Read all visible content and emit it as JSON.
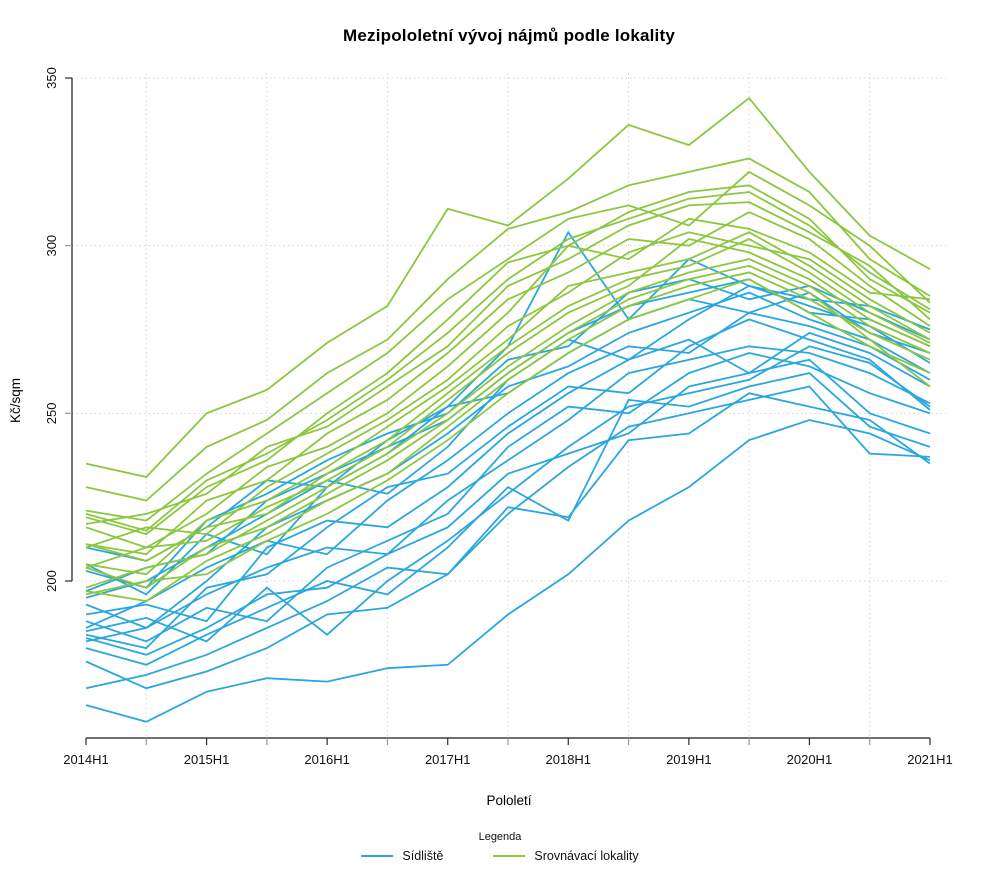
{
  "chart_data": {
    "type": "line",
    "title": "Mezipololetní vývoj nájmů podle lokality",
    "xlabel": "Pololetí",
    "ylabel": "Kč/sqm",
    "x_categories": [
      "2014H1",
      "2014H2",
      "2015H1",
      "2015H2",
      "2016H1",
      "2016H2",
      "2017H1",
      "2017H2",
      "2018H1",
      "2018H2",
      "2019H1",
      "2019H2",
      "2020H1",
      "2020H2",
      "2021H1"
    ],
    "x_labeled_every": 2,
    "y_ticks": [
      200,
      250,
      300,
      350
    ],
    "ylim": [
      152,
      351
    ],
    "grid": "dotted",
    "colors": {
      "sidliste": "#29a7de",
      "srovnavaci": "#8dc63f",
      "gridline": "#d4d4d4",
      "axis": "#1a1a1a",
      "minor_tick": "#9a9a9a"
    },
    "legend": {
      "title": "Legenda",
      "position": "bottom",
      "items": [
        {
          "label": "Sídliště",
          "color": "#29a7de"
        },
        {
          "label": "Srovnávací lokality",
          "color": "#8dc63f"
        }
      ]
    },
    "series": [
      {
        "group": "Sídliště",
        "values": [
          163,
          158,
          167,
          171,
          170,
          174,
          175,
          190,
          202,
          218,
          228,
          242,
          248,
          244,
          236
        ]
      },
      {
        "group": "Sídliště",
        "values": [
          176,
          168,
          173,
          180,
          190,
          192,
          202,
          222,
          219,
          242,
          244,
          256,
          252,
          248,
          235
        ]
      },
      {
        "group": "Sídliště",
        "values": [
          183,
          178,
          186,
          196,
          198,
          208,
          216,
          232,
          238,
          244,
          258,
          262,
          266,
          250,
          244
        ]
      },
      {
        "group": "Sídliště",
        "values": [
          185,
          189,
          182,
          198,
          184,
          200,
          212,
          226,
          240,
          252,
          256,
          260,
          270,
          265,
          252
        ]
      },
      {
        "group": "Sídliště",
        "values": [
          188,
          182,
          192,
          188,
          204,
          212,
          220,
          240,
          252,
          250,
          262,
          268,
          264,
          256,
          250
        ]
      },
      {
        "group": "Sídliště",
        "values": [
          182,
          186,
          196,
          204,
          210,
          208,
          224,
          236,
          248,
          262,
          266,
          270,
          268,
          262,
          253
        ]
      },
      {
        "group": "Sídliště",
        "values": [
          190,
          193,
          188,
          210,
          218,
          216,
          228,
          244,
          256,
          266,
          272,
          262,
          274,
          268,
          258
        ]
      },
      {
        "group": "Sídliště",
        "values": [
          184,
          180,
          198,
          202,
          216,
          228,
          232,
          246,
          258,
          256,
          270,
          278,
          272,
          266,
          251
        ]
      },
      {
        "group": "Sídliště",
        "values": [
          186,
          194,
          204,
          212,
          208,
          224,
          236,
          250,
          262,
          270,
          268,
          280,
          276,
          270,
          260
        ]
      },
      {
        "group": "Sídliště",
        "values": [
          193,
          186,
          200,
          216,
          224,
          232,
          244,
          258,
          264,
          274,
          280,
          286,
          278,
          272,
          262
        ]
      },
      {
        "group": "Sídliště",
        "values": [
          195,
          200,
          210,
          220,
          230,
          226,
          240,
          260,
          272,
          266,
          278,
          288,
          282,
          276,
          265
        ]
      },
      {
        "group": "Sídliště",
        "values": [
          205,
          196,
          214,
          208,
          228,
          238,
          252,
          256,
          268,
          278,
          284,
          280,
          286,
          274,
          268
        ]
      },
      {
        "group": "Sídliště",
        "values": [
          197,
          204,
          208,
          224,
          232,
          240,
          248,
          262,
          274,
          282,
          286,
          290,
          280,
          278,
          270
        ]
      },
      {
        "group": "Sídliště",
        "values": [
          203,
          198,
          218,
          226,
          236,
          244,
          250,
          266,
          270,
          286,
          290,
          284,
          288,
          280,
          272
        ]
      },
      {
        "group": "Sídliště",
        "values": [
          210,
          206,
          216,
          230,
          228,
          242,
          252,
          270,
          304,
          278,
          296,
          288,
          284,
          282,
          275
        ]
      },
      {
        "group": "Sídliště",
        "values": [
          180,
          175,
          184,
          192,
          200,
          196,
          210,
          228,
          218,
          254,
          252,
          258,
          262,
          246,
          240
        ]
      },
      {
        "group": "Sídliště",
        "values": [
          168,
          172,
          178,
          186,
          194,
          204,
          202,
          220,
          234,
          246,
          250,
          254,
          258,
          238,
          237
        ]
      },
      {
        "group": "Srovnávací lokality",
        "values": [
          235,
          231,
          250,
          257,
          271,
          282,
          311,
          306,
          320,
          336,
          330,
          344,
          322,
          303,
          293
        ]
      },
      {
        "group": "Srovnávací lokality",
        "values": [
          228,
          224,
          240,
          248,
          262,
          272,
          290,
          305,
          310,
          318,
          322,
          326,
          316,
          296,
          285
        ]
      },
      {
        "group": "Srovnávací lokality",
        "values": [
          221,
          218,
          232,
          244,
          256,
          268,
          284,
          296,
          308,
          312,
          306,
          322,
          312,
          300,
          283
        ]
      },
      {
        "group": "Srovnávací lokality",
        "values": [
          219,
          214,
          228,
          236,
          250,
          262,
          278,
          295,
          300,
          310,
          316,
          318,
          308,
          290,
          280
        ]
      },
      {
        "group": "Srovnávací lokality",
        "values": [
          217,
          220,
          226,
          240,
          246,
          258,
          270,
          288,
          296,
          306,
          312,
          313,
          304,
          294,
          278
        ]
      },
      {
        "group": "Srovnávací lokality",
        "values": [
          211,
          208,
          224,
          230,
          244,
          254,
          268,
          284,
          292,
          302,
          300,
          310,
          302,
          288,
          276
        ]
      },
      {
        "group": "Srovnávací lokality",
        "values": [
          216,
          210,
          220,
          234,
          240,
          250,
          264,
          280,
          300,
          296,
          308,
          305,
          298,
          286,
          284
        ]
      },
      {
        "group": "Srovnávací lokality",
        "values": [
          210,
          216,
          214,
          228,
          238,
          248,
          260,
          276,
          286,
          298,
          304,
          300,
          296,
          284,
          274
        ]
      },
      {
        "group": "Srovnávací lokality",
        "values": [
          205,
          202,
          218,
          224,
          234,
          246,
          258,
          272,
          288,
          292,
          296,
          304,
          294,
          282,
          272
        ]
      },
      {
        "group": "Srovnávací lokality",
        "values": [
          204,
          210,
          212,
          222,
          230,
          240,
          254,
          268,
          280,
          288,
          302,
          298,
          290,
          278,
          270
        ]
      },
      {
        "group": "Srovnávací lokality",
        "values": [
          198,
          204,
          208,
          218,
          228,
          238,
          250,
          264,
          276,
          286,
          292,
          296,
          288,
          276,
          268
        ]
      },
      {
        "group": "Srovnávací lokality",
        "values": [
          197,
          194,
          206,
          214,
          224,
          232,
          246,
          260,
          272,
          282,
          288,
          292,
          284,
          274,
          266
        ]
      },
      {
        "group": "Srovnávací lokality",
        "values": [
          196,
          200,
          202,
          212,
          220,
          230,
          242,
          256,
          268,
          278,
          284,
          290,
          280,
          270,
          262
        ]
      },
      {
        "group": "Srovnávací lokality",
        "values": [
          211,
          206,
          216,
          220,
          232,
          242,
          256,
          270,
          282,
          290,
          294,
          302,
          292,
          280,
          271
        ]
      },
      {
        "group": "Srovnávací lokality",
        "values": [
          220,
          215,
          230,
          238,
          248,
          260,
          274,
          290,
          302,
          308,
          314,
          316,
          306,
          292,
          281
        ]
      },
      {
        "group": "Srovnávací lokality",
        "values": [
          204,
          198,
          210,
          216,
          226,
          236,
          248,
          262,
          274,
          284,
          290,
          294,
          286,
          272,
          258
        ]
      }
    ]
  }
}
